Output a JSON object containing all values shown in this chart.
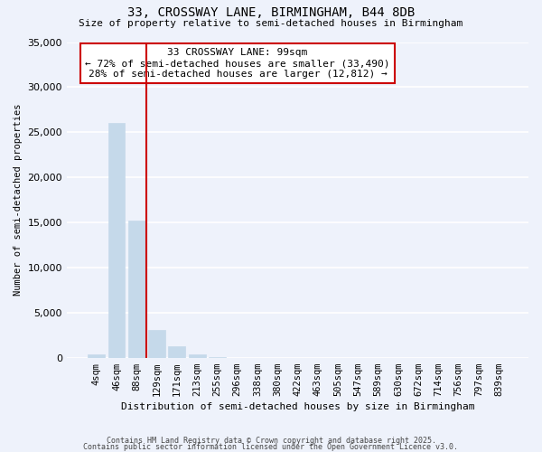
{
  "title_line1": "33, CROSSWAY LANE, BIRMINGHAM, B44 8DB",
  "title_line2": "Size of property relative to semi-detached houses in Birmingham",
  "xlabel": "Distribution of semi-detached houses by size in Birmingham",
  "ylabel": "Number of semi-detached properties",
  "footer_line1": "Contains HM Land Registry data © Crown copyright and database right 2025.",
  "footer_line2": "Contains public sector information licensed under the Open Government Licence v3.0.",
  "annotation_line1": "33 CROSSWAY LANE: 99sqm",
  "annotation_line2": "← 72% of semi-detached houses are smaller (33,490)",
  "annotation_line3": "28% of semi-detached houses are larger (12,812) →",
  "bar_labels": [
    "4sqm",
    "46sqm",
    "88sqm",
    "129sqm",
    "171sqm",
    "213sqm",
    "255sqm",
    "296sqm",
    "338sqm",
    "380sqm",
    "422sqm",
    "463sqm",
    "505sqm",
    "547sqm",
    "589sqm",
    "630sqm",
    "672sqm",
    "714sqm",
    "756sqm",
    "797sqm",
    "839sqm"
  ],
  "bar_values": [
    400,
    26000,
    15200,
    3100,
    1300,
    400,
    50,
    0,
    0,
    0,
    0,
    0,
    0,
    0,
    0,
    0,
    0,
    0,
    0,
    0,
    0
  ],
  "bar_color": "#c5d9ea",
  "bar_edge_color": "#c5d9ea",
  "background_color": "#eef2fb",
  "grid_color": "#ffffff",
  "vline_x": 2.5,
  "vline_color": "#cc0000",
  "ylim": [
    0,
    35000
  ],
  "yticks": [
    0,
    5000,
    10000,
    15000,
    20000,
    25000,
    30000,
    35000
  ],
  "annotation_box_edge_color": "#cc0000",
  "annotation_box_face_color": "#ffffff",
  "figwidth": 6.0,
  "figheight": 5.0,
  "dpi": 100
}
